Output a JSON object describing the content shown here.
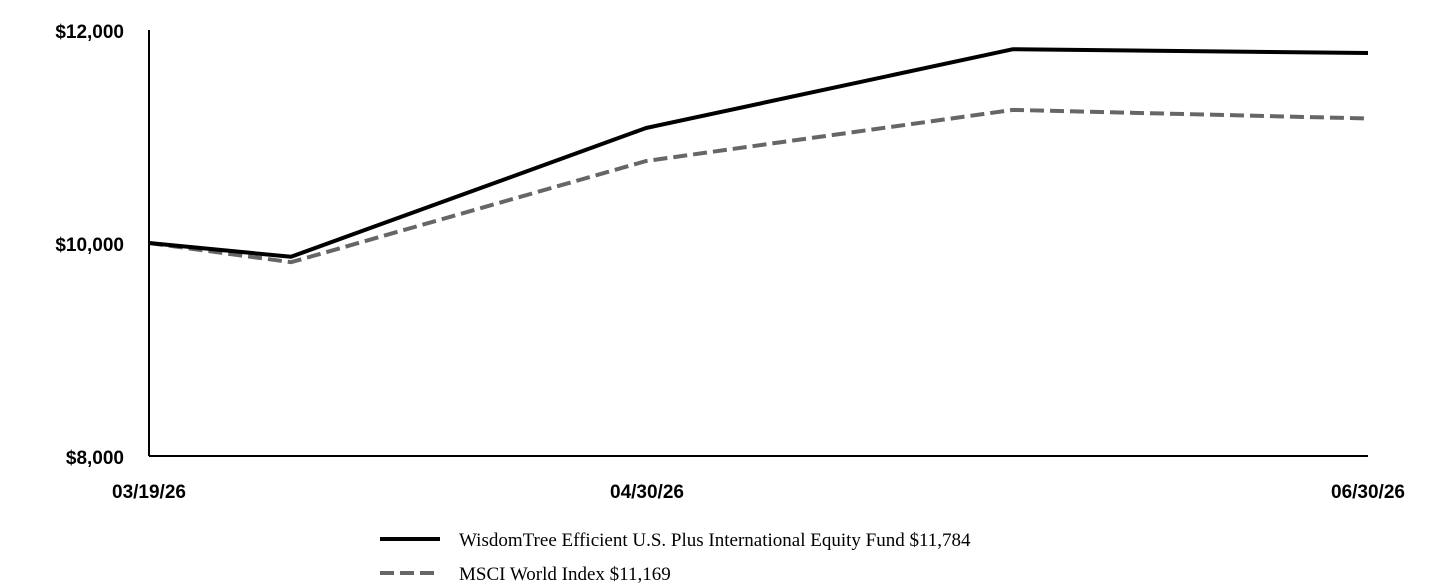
{
  "chart_data": {
    "type": "line",
    "title": "",
    "xlabel": "",
    "ylabel": "",
    "ylim": [
      8000,
      12000
    ],
    "yticks": [
      "$12,000",
      "$10,000",
      "$8,000"
    ],
    "ytick_values": [
      12000,
      10000,
      8000
    ],
    "xticks": [
      "03/19/26",
      "04/30/26",
      "06/30/26"
    ],
    "x": [
      "03/19/26",
      "03/31/26",
      "04/30/26",
      "05/31/26",
      "06/30/26"
    ],
    "series": [
      {
        "name": "WisdomTree Efficient U.S. Plus International Equity Fund $11,784",
        "values": [
          10000,
          9870,
          11080,
          11820,
          11784
        ],
        "color": "#000000",
        "style": "solid"
      },
      {
        "name": "MSCI World Index $11,169",
        "values": [
          10000,
          9820,
          10770,
          11250,
          11169
        ],
        "color": "#666666",
        "style": "dashed"
      }
    ],
    "grid": false,
    "legend": "bottom"
  }
}
